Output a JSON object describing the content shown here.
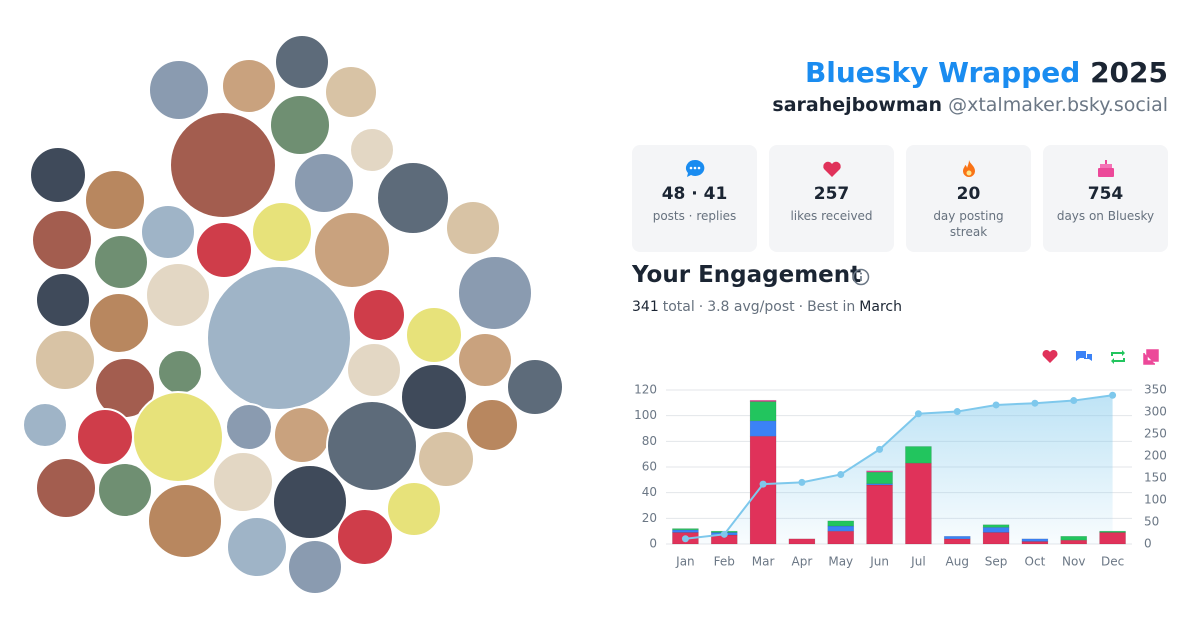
{
  "header": {
    "title": "Bluesky Wrapped",
    "year": "2025",
    "display_name": "sarahejbowman",
    "handle": "@xtalmaker.bsky.social"
  },
  "stats": [
    {
      "value": "48 · 41",
      "label": "posts · replies"
    },
    {
      "value": 257,
      "label": "likes received"
    },
    {
      "value": 20,
      "label": "day posting streak"
    },
    {
      "value": 754,
      "label": "days on Bluesky"
    }
  ],
  "engagement": {
    "title": "Your Engagement",
    "total": 341,
    "total_label": "total",
    "separator": "·",
    "avg": "3.8 avg/post",
    "best_label": "Best in",
    "best": "March"
  },
  "chart_data": {
    "type": "bar",
    "categories": [
      "Jan",
      "Feb",
      "Mar",
      "Apr",
      "May",
      "Jun",
      "Jul",
      "Aug",
      "Sep",
      "Oct",
      "Nov",
      "Dec"
    ],
    "series": [
      {
        "color": "#e0325a",
        "values": [
          9,
          7,
          84,
          4,
          10,
          46,
          63,
          4,
          9,
          2,
          3,
          9
        ]
      },
      {
        "color": "#3b82f6",
        "values": [
          2,
          2,
          12,
          0,
          4,
          1,
          0,
          2,
          4,
          2,
          0,
          0
        ]
      },
      {
        "color": "#22c55e",
        "values": [
          1,
          1,
          15,
          0,
          4,
          9,
          13,
          0,
          2,
          0,
          3,
          1
        ]
      },
      {
        "color": "#ec4899",
        "values": [
          0,
          0,
          1,
          0,
          0,
          1,
          0,
          0,
          0,
          0,
          0,
          0
        ]
      },
      {
        "color": "#7ec8ec",
        "axis": "y2",
        "values": [
          12,
          22,
          136,
          140,
          158,
          215,
          296,
          301,
          316,
          320,
          326,
          338
        ]
      }
    ],
    "ylim": [
      0,
      120
    ],
    "yticks": [
      0,
      20,
      40,
      60,
      80,
      100,
      120
    ],
    "y2lim": [
      0,
      350
    ],
    "y2ticks": [
      0,
      50,
      100,
      150,
      200,
      250,
      300,
      350
    ],
    "grid": true
  }
}
